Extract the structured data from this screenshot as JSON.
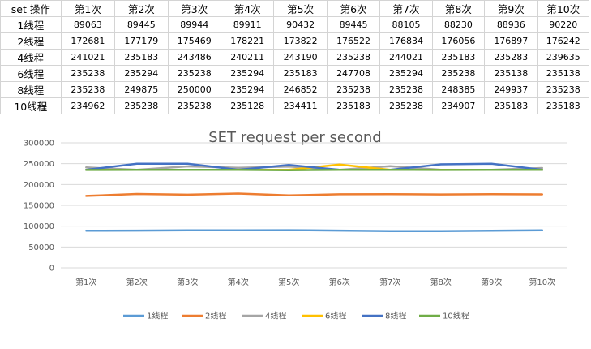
{
  "table": {
    "header": [
      "set 操作",
      "第1次",
      "第2次",
      "第3次",
      "第4次",
      "第5次",
      "第6次",
      "第7次",
      "第8次",
      "第9次",
      "第10次"
    ],
    "rows": [
      {
        "label": "1线程",
        "values": [
          "89063",
          "89445",
          "89944",
          "89911",
          "90432",
          "89445",
          "88105",
          "88230",
          "88936",
          "90220"
        ]
      },
      {
        "label": "2线程",
        "values": [
          "172681",
          "177179",
          "175469",
          "178221",
          "173822",
          "176522",
          "176834",
          "176056",
          "176897",
          "176242"
        ]
      },
      {
        "label": "4线程",
        "values": [
          "241021",
          "235183",
          "243486",
          "240211",
          "243190",
          "235238",
          "244021",
          "235183",
          "235283",
          "239635"
        ]
      },
      {
        "label": "6线程",
        "values": [
          "235238",
          "235294",
          "235238",
          "235294",
          "235183",
          "247708",
          "235294",
          "235238",
          "235138",
          "235138"
        ]
      },
      {
        "label": "8线程",
        "values": [
          "235238",
          "249875",
          "250000",
          "235294",
          "246852",
          "235238",
          "235238",
          "248385",
          "249937",
          "235238"
        ]
      },
      {
        "label": "10线程",
        "values": [
          "234962",
          "235238",
          "235238",
          "235128",
          "234411",
          "235183",
          "235238",
          "234907",
          "235183",
          "235183"
        ]
      }
    ]
  },
  "chart_data": {
    "type": "line",
    "title": "SET request per second",
    "xlabel": "",
    "ylabel": "",
    "categories": [
      "第1次",
      "第2次",
      "第3次",
      "第4次",
      "第5次",
      "第6次",
      "第7次",
      "第8次",
      "第9次",
      "第10次"
    ],
    "ylim": [
      0,
      300000
    ],
    "yticks": [
      "0",
      "50000",
      "100000",
      "150000",
      "200000",
      "250000",
      "300000"
    ],
    "grid": true,
    "legend_position": "bottom",
    "series": [
      {
        "name": "1线程",
        "color": "#5b9bd5",
        "values": [
          89063,
          89445,
          89944,
          89911,
          90432,
          89445,
          88105,
          88230,
          88936,
          90220
        ]
      },
      {
        "name": "2线程",
        "color": "#ed7d31",
        "values": [
          172681,
          177179,
          175469,
          178221,
          173822,
          176522,
          176834,
          176056,
          176897,
          176242
        ]
      },
      {
        "name": "4线程",
        "color": "#a5a5a5",
        "values": [
          241021,
          235183,
          243486,
          240211,
          243190,
          235238,
          244021,
          235183,
          235283,
          239635
        ]
      },
      {
        "name": "6线程",
        "color": "#ffc000",
        "values": [
          235238,
          235294,
          235238,
          235294,
          235183,
          247708,
          235294,
          235238,
          235138,
          235138
        ]
      },
      {
        "name": "8线程",
        "color": "#4472c4",
        "values": [
          235238,
          249875,
          250000,
          235294,
          246852,
          235238,
          235238,
          248385,
          249937,
          235238
        ]
      },
      {
        "name": "10线程",
        "color": "#70ad47",
        "values": [
          234962,
          235238,
          235238,
          235128,
          234411,
          235183,
          235238,
          234907,
          235183,
          235183
        ]
      }
    ]
  }
}
